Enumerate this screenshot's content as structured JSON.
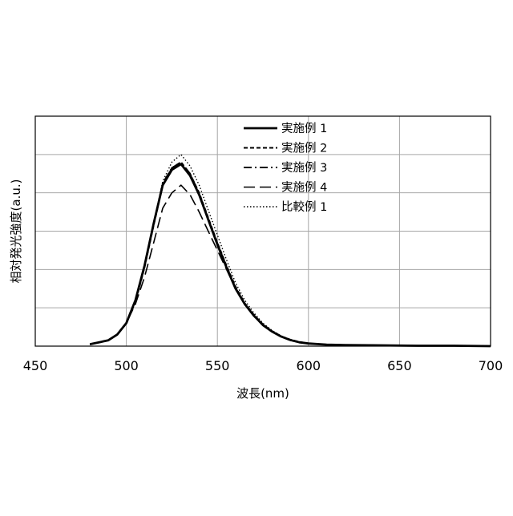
{
  "chart_data": {
    "type": "line",
    "title": "",
    "xlabel": "波長(nm)",
    "ylabel": "相対発光強度(a.u.)",
    "xlim": [
      450,
      700
    ],
    "ylim": [
      0,
      6
    ],
    "xticks": [
      450,
      500,
      550,
      600,
      650,
      700
    ],
    "y_tick_labels_shown": false,
    "grid": true,
    "legend_position": "top-center",
    "series": [
      {
        "name": "実施例 1",
        "line_style": "solid",
        "x": [
          480,
          490,
          495,
          500,
          505,
          510,
          515,
          520,
          525,
          530,
          535,
          540,
          545,
          550,
          555,
          560,
          565,
          570,
          575,
          580,
          585,
          590,
          595,
          600,
          610,
          620,
          640,
          660,
          680,
          700
        ],
        "y": [
          0.05,
          0.15,
          0.3,
          0.6,
          1.2,
          2.1,
          3.2,
          4.2,
          4.6,
          4.75,
          4.45,
          3.95,
          3.3,
          2.65,
          2.05,
          1.5,
          1.1,
          0.8,
          0.55,
          0.38,
          0.25,
          0.16,
          0.1,
          0.07,
          0.04,
          0.03,
          0.02,
          0.01,
          0.01,
          0.0
        ]
      },
      {
        "name": "実施例 2",
        "line_style": "dashed",
        "x": [
          480,
          490,
          495,
          500,
          505,
          510,
          515,
          520,
          525,
          530,
          535,
          540,
          545,
          550,
          555,
          560,
          565,
          570,
          575,
          580,
          585,
          590,
          595,
          600,
          610,
          620,
          640,
          660,
          680,
          700
        ],
        "y": [
          0.05,
          0.15,
          0.3,
          0.6,
          1.15,
          2.05,
          3.15,
          4.2,
          4.65,
          4.8,
          4.5,
          4.0,
          3.35,
          2.7,
          2.1,
          1.55,
          1.12,
          0.82,
          0.57,
          0.39,
          0.26,
          0.17,
          0.11,
          0.07,
          0.04,
          0.03,
          0.02,
          0.01,
          0.01,
          0.0
        ]
      },
      {
        "name": "実施例 3",
        "line_style": "dash-dot",
        "x": [
          480,
          490,
          495,
          500,
          505,
          510,
          515,
          520,
          525,
          530,
          535,
          540,
          545,
          550,
          555,
          560,
          565,
          570,
          575,
          580,
          585,
          590,
          595,
          600,
          610,
          620,
          640,
          660,
          680,
          700
        ],
        "y": [
          0.05,
          0.15,
          0.3,
          0.6,
          1.2,
          2.1,
          3.2,
          4.25,
          4.65,
          4.8,
          4.5,
          3.98,
          3.32,
          2.68,
          2.07,
          1.52,
          1.1,
          0.8,
          0.55,
          0.38,
          0.25,
          0.16,
          0.1,
          0.07,
          0.04,
          0.03,
          0.02,
          0.01,
          0.01,
          0.0
        ]
      },
      {
        "name": "実施例 4",
        "line_style": "long-dash",
        "x": [
          480,
          490,
          495,
          500,
          505,
          510,
          515,
          520,
          525,
          530,
          535,
          540,
          545,
          550,
          555,
          560,
          565,
          570,
          575,
          580,
          585,
          590,
          595,
          600,
          610,
          620,
          640,
          660,
          680,
          700
        ],
        "y": [
          0.05,
          0.15,
          0.3,
          0.6,
          1.1,
          1.8,
          2.7,
          3.6,
          4.0,
          4.2,
          3.95,
          3.5,
          3.0,
          2.5,
          2.0,
          1.5,
          1.08,
          0.78,
          0.54,
          0.37,
          0.24,
          0.15,
          0.1,
          0.06,
          0.04,
          0.03,
          0.02,
          0.01,
          0.01,
          0.0
        ]
      },
      {
        "name": "比較例 1",
        "line_style": "dotted",
        "x": [
          480,
          490,
          495,
          500,
          505,
          510,
          515,
          520,
          525,
          530,
          535,
          540,
          545,
          550,
          555,
          560,
          565,
          570,
          575,
          580,
          585,
          590,
          595,
          600,
          610,
          620,
          640,
          660,
          680,
          700
        ],
        "y": [
          0.05,
          0.15,
          0.3,
          0.58,
          1.15,
          2.05,
          3.2,
          4.3,
          4.8,
          5.0,
          4.7,
          4.2,
          3.55,
          2.9,
          2.25,
          1.65,
          1.2,
          0.87,
          0.6,
          0.41,
          0.27,
          0.17,
          0.11,
          0.07,
          0.04,
          0.03,
          0.02,
          0.01,
          0.01,
          0.0
        ]
      }
    ]
  }
}
